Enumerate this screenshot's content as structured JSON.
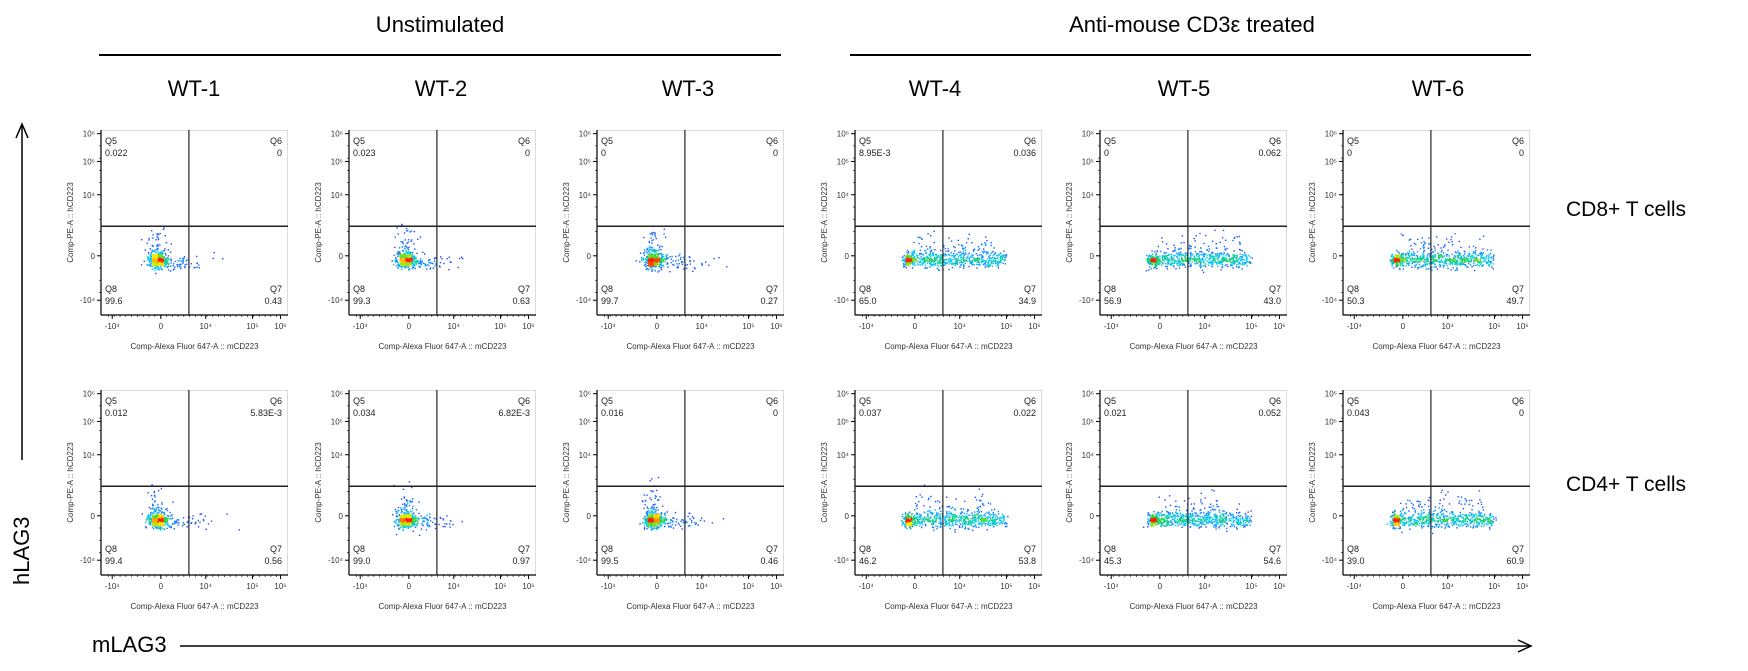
{
  "groups": [
    {
      "title": "Unstimulated"
    },
    {
      "title": "Anti-mouse CD3ε treated"
    }
  ],
  "samples": [
    "WT-1",
    "WT-2",
    "WT-3",
    "WT-4",
    "WT-5",
    "WT-6"
  ],
  "row_labels": [
    "CD8+ T cells",
    "CD4+ T cells"
  ],
  "axis_arrows": {
    "y": "hLAG3",
    "x": "mLAG3"
  },
  "chart_data": {
    "type": "scatter",
    "subtype": "flow-cytometry-pseudocolor-quadrant",
    "xlabel": "Comp-Alexa Fluor 647-A :: mCD223",
    "ylabel": "Comp-PE-A :: hCD223",
    "x_ticks": [
      "-10⁴",
      "0",
      "10⁴",
      "10⁵",
      "10⁶"
    ],
    "y_ticks": [
      "10⁶",
      "10⁵",
      "10⁴",
      "0",
      "-10⁴"
    ],
    "x_scale": "biexponential",
    "y_scale": "biexponential",
    "quadrant_names": {
      "upper_left": "Q5",
      "upper_right": "Q6",
      "lower_right": "Q7",
      "lower_left": "Q8"
    },
    "colors": {
      "density_low": "#1a1aff",
      "density_mid": "#22c55e",
      "density_high": "#ffee00",
      "density_peak": "#ff2200",
      "gate": "#222222"
    },
    "rows": [
      {
        "population": "CD8+ T cells",
        "plots": [
          {
            "sample": "WT-1",
            "stimulated": false,
            "Q5": "0.022",
            "Q6": "0",
            "Q7": "0.43",
            "Q8": "99.6"
          },
          {
            "sample": "WT-2",
            "stimulated": false,
            "Q5": "0.023",
            "Q6": "0",
            "Q7": "0.63",
            "Q8": "99.3"
          },
          {
            "sample": "WT-3",
            "stimulated": false,
            "Q5": "0",
            "Q6": "0",
            "Q7": "0.27",
            "Q8": "99.7"
          },
          {
            "sample": "WT-4",
            "stimulated": true,
            "Q5": "8.95E-3",
            "Q6": "0.036",
            "Q7": "34.9",
            "Q8": "65.0"
          },
          {
            "sample": "WT-5",
            "stimulated": true,
            "Q5": "0",
            "Q6": "0.062",
            "Q7": "43.0",
            "Q8": "56.9"
          },
          {
            "sample": "WT-6",
            "stimulated": true,
            "Q5": "0",
            "Q6": "0",
            "Q7": "49.7",
            "Q8": "50.3"
          }
        ]
      },
      {
        "population": "CD4+ T cells",
        "plots": [
          {
            "sample": "WT-1",
            "stimulated": false,
            "Q5": "0.012",
            "Q6": "5.83E-3",
            "Q7": "0.56",
            "Q8": "99.4"
          },
          {
            "sample": "WT-2",
            "stimulated": false,
            "Q5": "0.034",
            "Q6": "6.82E-3",
            "Q7": "0.97",
            "Q8": "99.0"
          },
          {
            "sample": "WT-3",
            "stimulated": false,
            "Q5": "0.016",
            "Q6": "0",
            "Q7": "0.46",
            "Q8": "99.5"
          },
          {
            "sample": "WT-4",
            "stimulated": true,
            "Q5": "0.037",
            "Q6": "0.022",
            "Q7": "53.8",
            "Q8": "46.2"
          },
          {
            "sample": "WT-5",
            "stimulated": true,
            "Q5": "0.021",
            "Q6": "0.052",
            "Q7": "54.6",
            "Q8": "45.3"
          },
          {
            "sample": "WT-6",
            "stimulated": true,
            "Q5": "0.043",
            "Q6": "0",
            "Q7": "60.9",
            "Q8": "39.0"
          }
        ]
      }
    ]
  }
}
